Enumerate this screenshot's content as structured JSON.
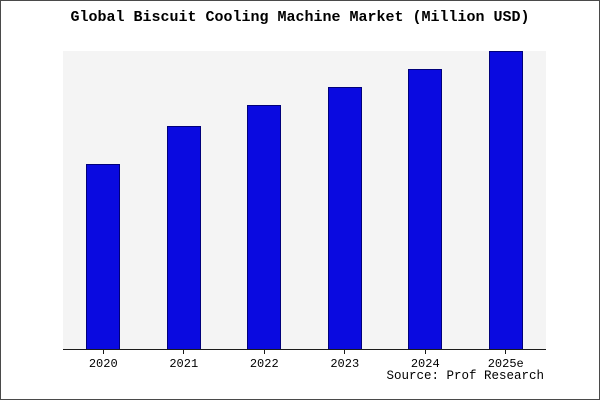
{
  "title": "Global Biscuit Cooling Machine Market (Million USD)",
  "source_note": "Source: Prof Research",
  "colors": {
    "bar_fill": "#0a0ae0",
    "bar_edge": "#00007a",
    "plot_bg": "#f4f4f4",
    "axis": "#1a1a1a"
  },
  "chart_data": {
    "type": "bar",
    "categories": [
      "2020",
      "2021",
      "2022",
      "2023",
      "2024",
      "2025e"
    ],
    "values": [
      62,
      75,
      82,
      88,
      94,
      100
    ],
    "title": "Global Biscuit Cooling Machine Market (Million USD)",
    "xlabel": "",
    "ylabel": "",
    "ylim": [
      0,
      100
    ],
    "grid": false,
    "legend": false,
    "plot_background": "light-gray",
    "source": "Source: Prof Research"
  }
}
